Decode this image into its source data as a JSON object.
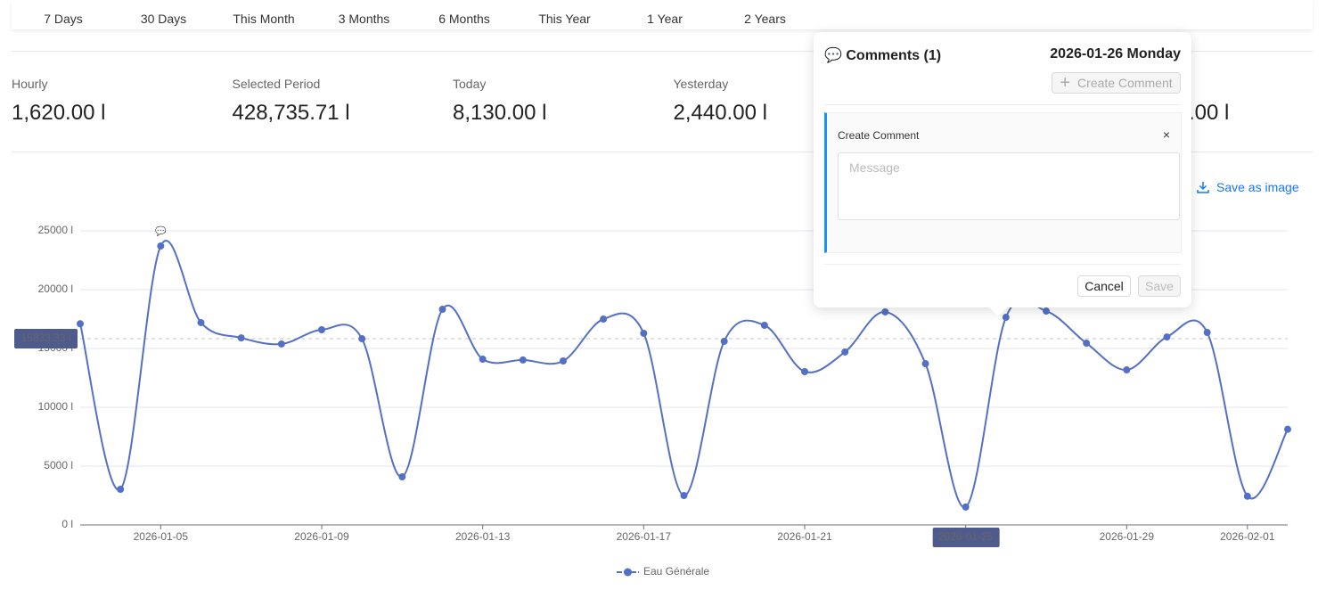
{
  "tabs": [
    "7 Days",
    "30 Days",
    "This Month",
    "3 Months",
    "6 Months",
    "This Year",
    "1 Year",
    "2 Years"
  ],
  "stats": [
    {
      "label": "Hourly",
      "value": "1,620.00 l"
    },
    {
      "label": "Selected Period",
      "value": "428,735.71 l"
    },
    {
      "label": "Today",
      "value": "8,130.00 l"
    },
    {
      "label": "Yesterday",
      "value": "2,440.00 l"
    },
    {
      "value": ".00 l"
    }
  ],
  "save_image": "Save as image",
  "chart_data": {
    "type": "line",
    "x": [
      "2026-01-03",
      "2026-01-04",
      "2026-01-05",
      "2026-01-06",
      "2026-01-07",
      "2026-01-08",
      "2026-01-09",
      "2026-01-10",
      "2026-01-11",
      "2026-01-12",
      "2026-01-13",
      "2026-01-14",
      "2026-01-15",
      "2026-01-16",
      "2026-01-17",
      "2026-01-18",
      "2026-01-19",
      "2026-01-20",
      "2026-01-21",
      "2026-01-22",
      "2026-01-23",
      "2026-01-24",
      "2026-01-25",
      "2026-01-26",
      "2026-01-27",
      "2026-01-28",
      "2026-01-29",
      "2026-01-30",
      "2026-01-31",
      "2026-02-01",
      "2026-02-02"
    ],
    "series": [
      {
        "name": "Eau Générale",
        "color": "#5470c6",
        "values": [
          17100,
          3030,
          23710,
          17200,
          15900,
          15380,
          16590,
          15830,
          4090,
          18330,
          14090,
          14020,
          13940,
          17500,
          16290,
          2500,
          15610,
          16970,
          13030,
          14700,
          18110,
          13710,
          1520,
          17650,
          18180,
          15450,
          13180,
          15980,
          16360,
          2440,
          8130
        ]
      }
    ],
    "xticks": [
      "2026-01-05",
      "2026-01-09",
      "2026-01-13",
      "2026-01-17",
      "2026-01-21",
      "2026-01-25",
      "2026-01-29",
      "2026-02-01"
    ],
    "ylim": [
      0,
      25000
    ],
    "yticks": [
      {
        "value": 0,
        "label": "0 l"
      },
      {
        "value": 5000,
        "label": "5000 l"
      },
      {
        "value": 10000,
        "label": "10000 l"
      },
      {
        "value": 15000,
        "label": "15000 l"
      },
      {
        "value": 20000,
        "label": "20000 l"
      },
      {
        "value": 25000,
        "label": "25000 l"
      }
    ],
    "grid": true,
    "legend": "bottom",
    "annotations": [
      {
        "x": "2026-01-05",
        "text": "💬"
      }
    ],
    "axis_pointer": {
      "y": {
        "value": 15833.33,
        "label": "15833.33 l"
      },
      "x": "2026-01-25"
    }
  },
  "comments_popup": {
    "title": "💬 Comments (1)",
    "date": "2026-01-26 Monday",
    "create_button": "Create Comment",
    "form_title": "Create Comment",
    "close": "×",
    "placeholder": "Message",
    "cancel": "Cancel",
    "save": "Save"
  }
}
